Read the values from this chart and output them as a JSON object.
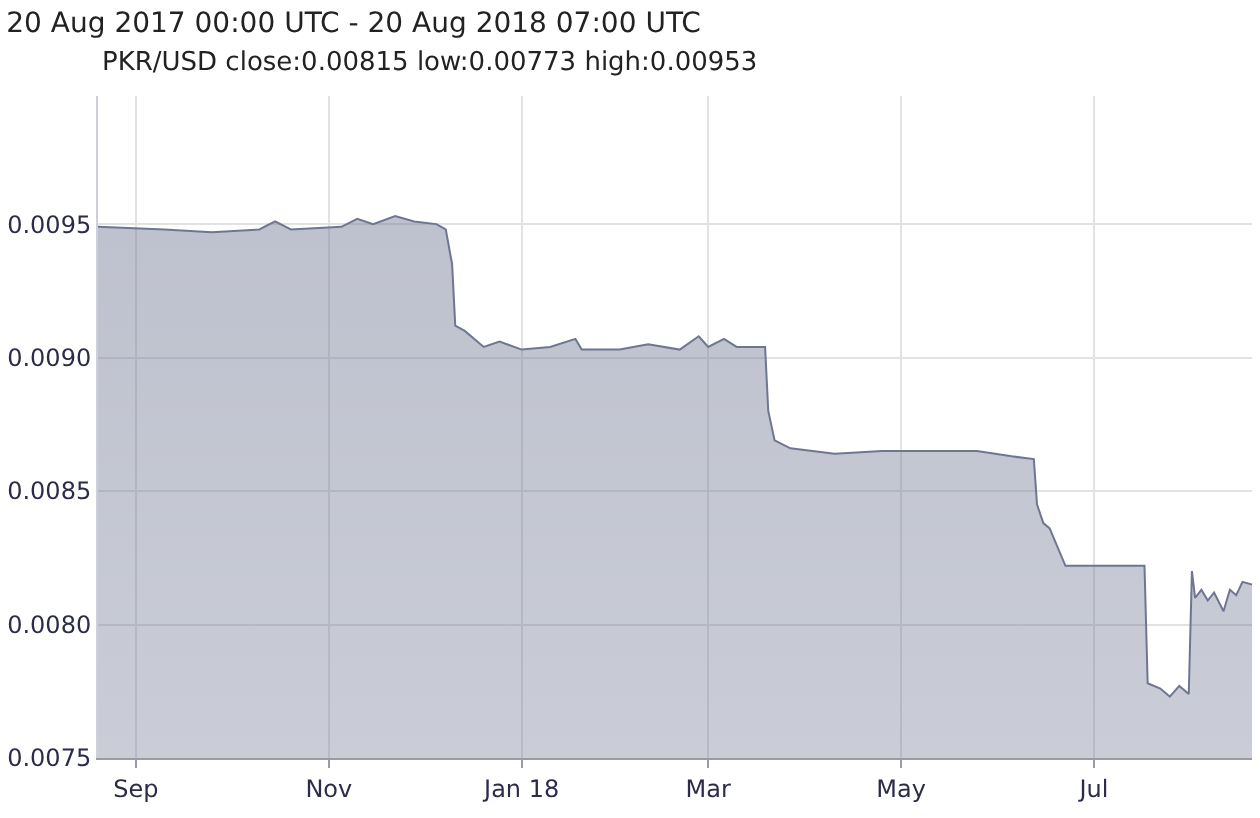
{
  "chart_data": {
    "type": "area",
    "title": "20 Aug 2017 00:00 UTC - 20 Aug 2018 07:00 UTC",
    "subtitle": "PKR/USD close:0.00815 low:0.00773 high:0.00953",
    "x": [
      "2017-08-20",
      "2017-09-10",
      "2017-09-25",
      "2017-10-10",
      "2017-10-15",
      "2017-10-20",
      "2017-11-05",
      "2017-11-10",
      "2017-11-15",
      "2017-11-22",
      "2017-11-28",
      "2017-12-05",
      "2017-12-08",
      "2017-12-10",
      "2017-12-11",
      "2017-12-14",
      "2017-12-20",
      "2017-12-25",
      "2018-01-01",
      "2018-01-10",
      "2018-01-18",
      "2018-01-20",
      "2018-02-01",
      "2018-02-10",
      "2018-02-20",
      "2018-02-26",
      "2018-03-01",
      "2018-03-06",
      "2018-03-10",
      "2018-03-19",
      "2018-03-20",
      "2018-03-22",
      "2018-03-27",
      "2018-04-10",
      "2018-04-25",
      "2018-05-10",
      "2018-05-25",
      "2018-06-05",
      "2018-06-12",
      "2018-06-13",
      "2018-06-15",
      "2018-06-17",
      "2018-06-22",
      "2018-07-01",
      "2018-07-17",
      "2018-07-18",
      "2018-07-22",
      "2018-07-25",
      "2018-07-28",
      "2018-07-31",
      "2018-08-01",
      "2018-08-02",
      "2018-08-04",
      "2018-08-06",
      "2018-08-08",
      "2018-08-11",
      "2018-08-13",
      "2018-08-15",
      "2018-08-17",
      "2018-08-20"
    ],
    "series": [
      {
        "color": "#6e7691",
        "values": [
          0.00949,
          0.00948,
          0.00947,
          0.00948,
          0.00951,
          0.00948,
          0.00949,
          0.00952,
          0.0095,
          0.00953,
          0.00951,
          0.0095,
          0.00948,
          0.00935,
          0.00912,
          0.0091,
          0.00904,
          0.00906,
          0.00903,
          0.00904,
          0.00907,
          0.00903,
          0.00903,
          0.00905,
          0.00903,
          0.00908,
          0.00904,
          0.00907,
          0.00904,
          0.00904,
          0.0088,
          0.00869,
          0.00866,
          0.00864,
          0.00865,
          0.00865,
          0.00865,
          0.00863,
          0.00862,
          0.00845,
          0.00838,
          0.00836,
          0.00822,
          0.00822,
          0.00822,
          0.00778,
          0.00776,
          0.00773,
          0.00777,
          0.00774,
          0.0082,
          0.0081,
          0.00813,
          0.00809,
          0.00812,
          0.00805,
          0.00813,
          0.00811,
          0.00816,
          0.00815
        ]
      }
    ],
    "xlim": [
      "2017-08-20",
      "2018-08-20"
    ],
    "xticks": [
      {
        "value": "2017-09-01",
        "label": "Sep"
      },
      {
        "value": "2017-11-01",
        "label": "Nov"
      },
      {
        "value": "2018-01-01",
        "label": "Jan 18"
      },
      {
        "value": "2018-03-01",
        "label": "Mar"
      },
      {
        "value": "2018-05-01",
        "label": "May"
      },
      {
        "value": "2018-07-01",
        "label": "Jul"
      }
    ],
    "ylim": [
      0.0075,
      0.00998
    ],
    "yticks": [
      0.0075,
      {
        "value": 0.008,
        "label": "0.0080"
      },
      0.0085,
      {
        "value": 0.009,
        "label": "0.0090"
      },
      0.0095
    ],
    "grid": true
  }
}
